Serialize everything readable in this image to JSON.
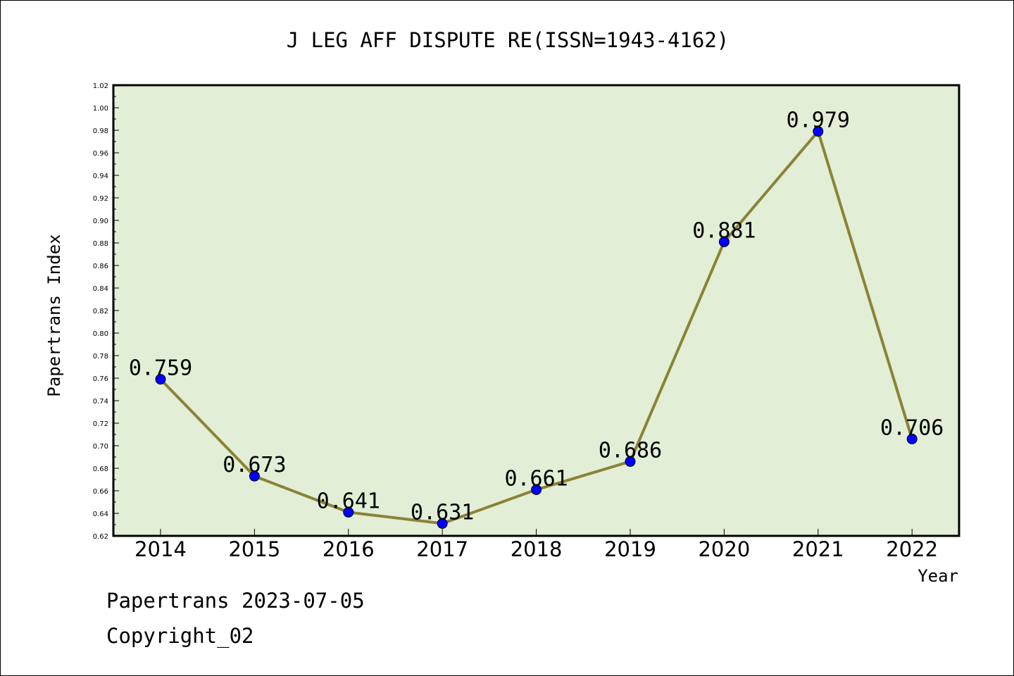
{
  "footer": {
    "line1": "Papertrans 2023-07-05",
    "line2": "Copyright_02"
  },
  "chart_data": {
    "type": "line",
    "title": "J LEG AFF DISPUTE RE(ISSN=1943-4162)",
    "xlabel": "Year",
    "ylabel": "Papertrans Index",
    "categories": [
      "2014",
      "2015",
      "2016",
      "2017",
      "2018",
      "2019",
      "2020",
      "2021",
      "2022"
    ],
    "series": [
      {
        "values": [
          0.759,
          0.673,
          0.641,
          0.631,
          0.661,
          0.686,
          0.881,
          0.979,
          0.706
        ],
        "labels": [
          "0.759",
          "0.673",
          "0.641",
          "0.631",
          "0.661",
          "0.686",
          "0.881",
          "0.979",
          "0.706"
        ]
      }
    ],
    "ylim": [
      0.62,
      1.02
    ],
    "yticks": [
      "0.62",
      "0.64",
      "0.66",
      "0.68",
      "0.70",
      "0.72",
      "0.74",
      "0.76",
      "0.78",
      "0.80",
      "0.82",
      "0.84",
      "0.86",
      "0.88",
      "0.90",
      "0.92",
      "0.94",
      "0.96",
      "0.98",
      "1.00",
      "1.02"
    ],
    "grid": false,
    "legend": "none",
    "colors": {
      "plot_background": "#e2efd6",
      "line": "#8b8236",
      "marker": "#0000ff",
      "axes": "#000000"
    }
  }
}
